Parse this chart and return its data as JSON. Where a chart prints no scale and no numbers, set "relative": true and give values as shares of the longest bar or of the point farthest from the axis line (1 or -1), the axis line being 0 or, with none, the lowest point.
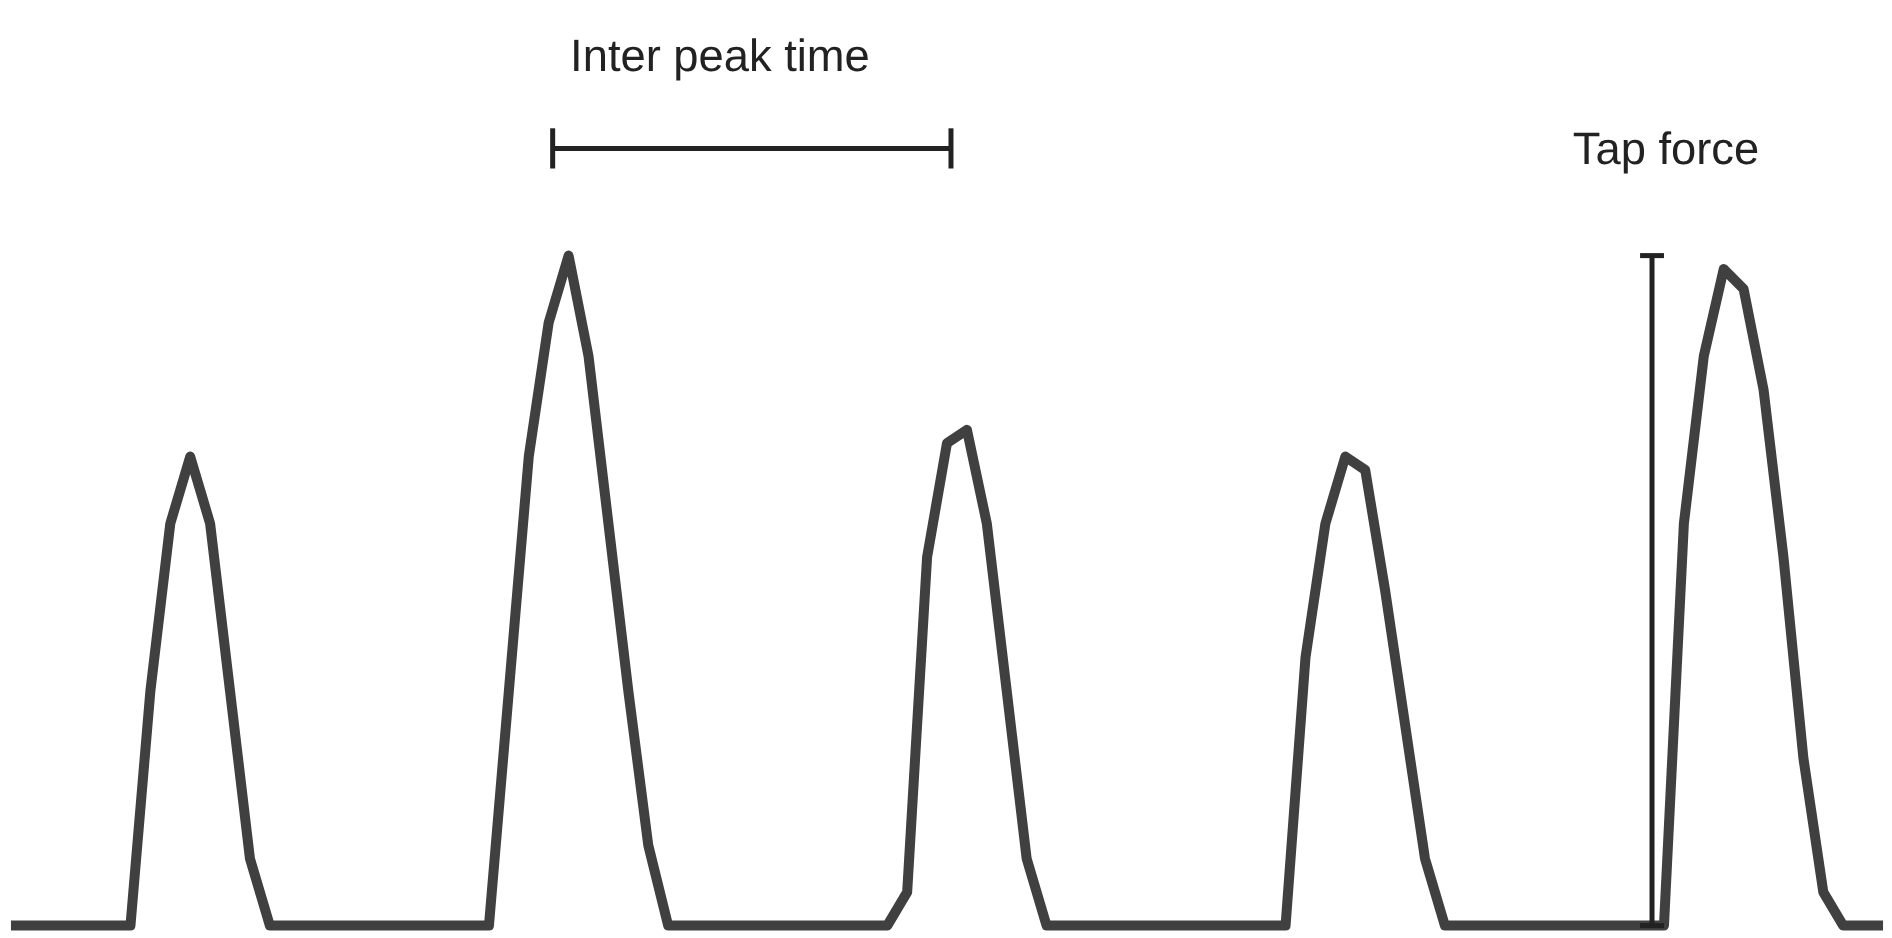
{
  "chart_data": {
    "type": "line",
    "relative": true,
    "categories": [
      null,
      null,
      null,
      null,
      null,
      null,
      null,
      null,
      null,
      null,
      null,
      null,
      null,
      null,
      null,
      null,
      null,
      null,
      null,
      null,
      null,
      null,
      null,
      null,
      null,
      null,
      null,
      null,
      null,
      null,
      null,
      null,
      null,
      null,
      null,
      null,
      null,
      null,
      null,
      null,
      null,
      null,
      null,
      null,
      null,
      null,
      null,
      null,
      null,
      null,
      null,
      null,
      null,
      null,
      null,
      null,
      null,
      null,
      null,
      null,
      null,
      null,
      null,
      null,
      null,
      null,
      null,
      null,
      null,
      null,
      null,
      null,
      null,
      null,
      null,
      null,
      null,
      null,
      null,
      null,
      null,
      null,
      null,
      null,
      null,
      null,
      null,
      null,
      null,
      null,
      null,
      null,
      null,
      null,
      null
    ],
    "series": [
      {
        "color": "#404040",
        "values": [
          0,
          0,
          0,
          0,
          0,
          0,
          0,
          0.35,
          0.6,
          0.7,
          0.6,
          0.35,
          0.1,
          0,
          0,
          0,
          0,
          0,
          0,
          0,
          0,
          0,
          0,
          0,
          0,
          0.35,
          0.7,
          0.9,
          1.0,
          0.85,
          0.6,
          0.35,
          0.12,
          0,
          0,
          0,
          0,
          0,
          0,
          0,
          0,
          0,
          0,
          0,
          0,
          0.05,
          0.55,
          0.72,
          0.74,
          0.6,
          0.35,
          0.1,
          0,
          0,
          0,
          0,
          0,
          0,
          0,
          0,
          0,
          0,
          0,
          0,
          0,
          0.4,
          0.6,
          0.7,
          0.68,
          0.5,
          0.3,
          0.1,
          0,
          0,
          0,
          0,
          0,
          0,
          0,
          0,
          0,
          0,
          0,
          0,
          0.6,
          0.85,
          0.98,
          0.95,
          0.8,
          0.55,
          0.25,
          0.05,
          0,
          0,
          0
        ]
      }
    ],
    "annotations": [
      "Inter peak time",
      "Tap force"
    ],
    "grid": false,
    "marker": "none",
    "line_style": "solid"
  }
}
